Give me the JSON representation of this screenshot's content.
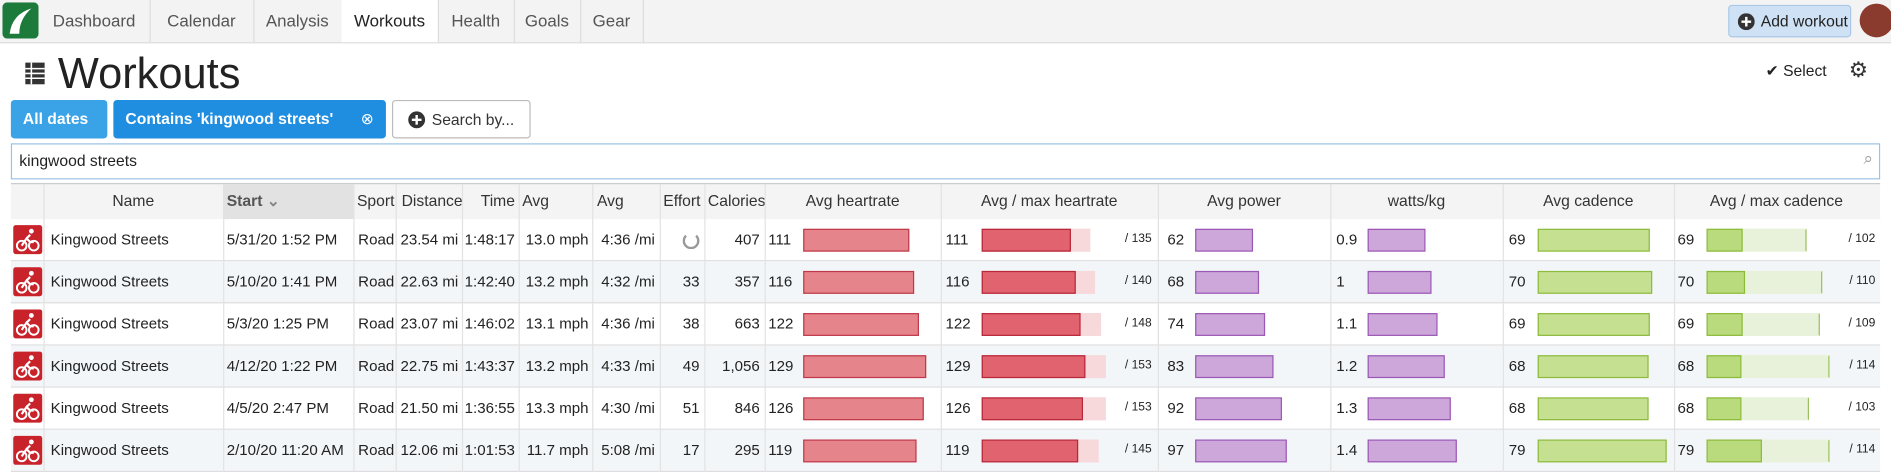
{
  "nav": {
    "items": [
      "Dashboard",
      "Calendar",
      "Analysis",
      "Workouts",
      "Health",
      "Goals",
      "Gear"
    ],
    "active": 3,
    "add_workout": "Add workout"
  },
  "header": {
    "title": "Workouts",
    "select": "Select"
  },
  "filters": [
    "All dates",
    "Contains 'kingwood streets'",
    "Search by..."
  ],
  "search": "kingwood streets",
  "table": {
    "columns": [
      "Name",
      "Start",
      "Sport",
      "Distance",
      "Time",
      "Avg speed",
      "Avg pace",
      "Effort",
      "Calories",
      "Avg heartrate",
      "Avg / max heartrate",
      "Avg power",
      "watts/kg",
      "Avg cadence",
      "Avg / max cadence"
    ],
    "rows": [
      {
        "name": "Kingwood Streets",
        "start": "5/31/20 1:52 PM",
        "sport": "Road",
        "distance": "23.54 mi",
        "time": "1:48:17",
        "avg_speed": "13.0 mph",
        "avg_pace": "4:36 /mi",
        "effort": null,
        "calories": "407",
        "avg_hr": 111,
        "max_hr": 135,
        "max_hr_label": "/ 135",
        "avg_power": 62,
        "wkg": 0.9,
        "avg_cadence": 69,
        "max_cadence": 102,
        "max_cadence_label": "/ 102"
      },
      {
        "name": "Kingwood Streets",
        "start": "5/10/20 1:41 PM",
        "sport": "Road",
        "distance": "22.63 mi",
        "time": "1:42:40",
        "avg_speed": "13.2 mph",
        "avg_pace": "4:32 /mi",
        "effort": "33",
        "calories": "357",
        "avg_hr": 116,
        "max_hr": 140,
        "max_hr_label": "/ 140",
        "avg_power": 68,
        "wkg": 1.0,
        "avg_cadence": 70,
        "max_cadence": 110,
        "max_cadence_label": "/ 110"
      },
      {
        "name": "Kingwood Streets",
        "start": "5/3/20 1:25 PM",
        "sport": "Road",
        "distance": "23.07 mi",
        "time": "1:46:02",
        "avg_speed": "13.1 mph",
        "avg_pace": "4:36 /mi",
        "effort": "38",
        "calories": "663",
        "avg_hr": 122,
        "max_hr": 148,
        "max_hr_label": "/ 148",
        "avg_power": 74,
        "wkg": 1.1,
        "avg_cadence": 69,
        "max_cadence": 109,
        "max_cadence_label": "/ 109"
      },
      {
        "name": "Kingwood Streets",
        "start": "4/12/20 1:22 PM",
        "sport": "Road",
        "distance": "22.75 mi",
        "time": "1:43:37",
        "avg_speed": "13.2 mph",
        "avg_pace": "4:33 /mi",
        "effort": "49",
        "calories": "1,056",
        "avg_hr": 129,
        "max_hr": 153,
        "max_hr_label": "/ 153",
        "avg_power": 83,
        "wkg": 1.2,
        "avg_cadence": 68,
        "max_cadence": 114,
        "max_cadence_label": "/ 114"
      },
      {
        "name": "Kingwood Streets",
        "start": "4/5/20 2:47 PM",
        "sport": "Road",
        "distance": "21.50 mi",
        "time": "1:36:55",
        "avg_speed": "13.3 mph",
        "avg_pace": "4:30 /mi",
        "effort": "51",
        "calories": "846",
        "avg_hr": 126,
        "max_hr": 153,
        "max_hr_label": "/ 153",
        "avg_power": 92,
        "wkg": 1.3,
        "avg_cadence": 68,
        "max_cadence": 103,
        "max_cadence_label": "/ 103"
      },
      {
        "name": "Kingwood Streets",
        "start": "2/10/20 11:20 AM",
        "sport": "Road",
        "distance": "12.06 mi",
        "time": "1:01:53",
        "avg_speed": "11.7 mph",
        "avg_pace": "5:08 /mi",
        "effort": "17",
        "calories": "295",
        "avg_hr": 119,
        "max_hr": 145,
        "max_hr_label": "/ 145",
        "avg_power": 97,
        "wkg": 1.4,
        "avg_cadence": 79,
        "max_cadence": 114,
        "max_cadence_label": "/ 114"
      }
    ]
  }
}
